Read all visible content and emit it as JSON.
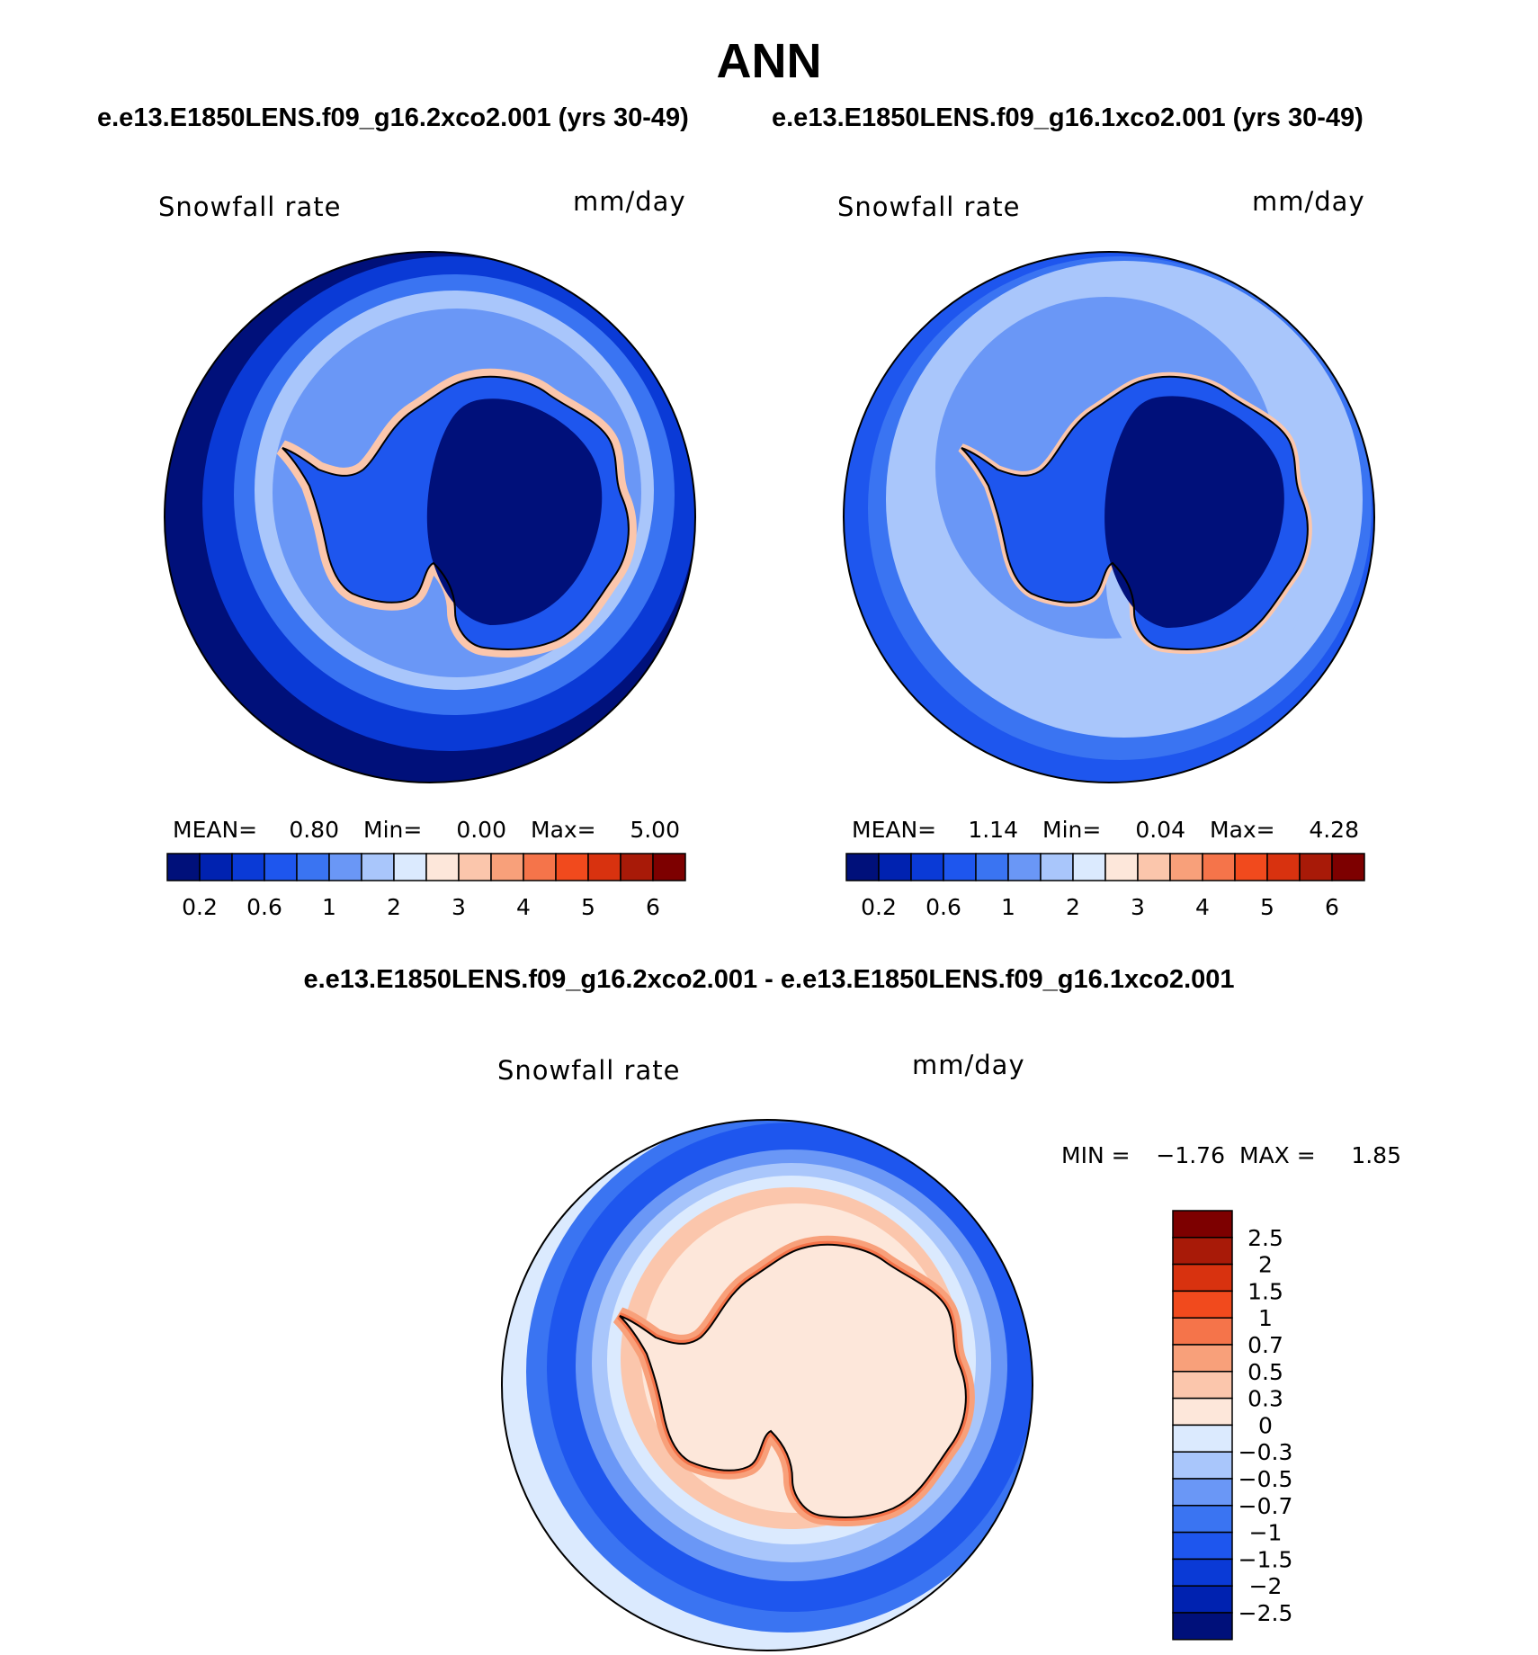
{
  "chart_data": {
    "type": "heatmap",
    "title": "ANN",
    "subtitle_left": "e.e13.E1850LENS.f09_g16.2xco2.001 (yrs 30-49)",
    "subtitle_right": "e.e13.E1850LENS.f09_g16.1xco2.001 (yrs 30-49)",
    "diff_title": "e.e13.E1850LENS.f09_g16.2xco2.001 - e.e13.E1850LENS.f09_g16.1xco2.001",
    "panels": [
      {
        "id": "left",
        "variable": "Snowfall rate",
        "units": "mm/day",
        "stats": {
          "mean_label": "MEAN=",
          "mean": "0.80",
          "min_label": "Min=",
          "min": "0.00",
          "max_label": "Max=",
          "max": "5.00"
        }
      },
      {
        "id": "right",
        "variable": "Snowfall rate",
        "units": "mm/day",
        "stats": {
          "mean_label": "MEAN=",
          "mean": "1.14",
          "min_label": "Min=",
          "min": "0.04",
          "max_label": "Max=",
          "max": "4.28"
        }
      },
      {
        "id": "diff",
        "variable": "Snowfall rate",
        "units": "mm/day",
        "stats": {
          "min_label": "MIN =",
          "min": "−1.76",
          "max_label": "MAX =",
          "max": "1.85"
        }
      }
    ],
    "colorbar_abs": {
      "colors": [
        "#00107a",
        "#0022b0",
        "#0a3ad6",
        "#1e56ee",
        "#3a74f2",
        "#6a97f6",
        "#a9c6fb",
        "#dbeafe",
        "#fde7da",
        "#fbc6ac",
        "#f8a07a",
        "#f5744a",
        "#f14a1d",
        "#d8320f",
        "#a81a08",
        "#7d0000"
      ],
      "tick_labels": [
        "0.2",
        "0.6",
        "1",
        "2",
        "3",
        "4",
        "5",
        "6"
      ]
    },
    "colorbar_diff": {
      "colors": [
        "#00107a",
        "#0022b0",
        "#0a3ad6",
        "#1e56ee",
        "#3a74f2",
        "#6a97f6",
        "#a9c6fb",
        "#dbeafe",
        "#fde7da",
        "#fbc6ac",
        "#f8a07a",
        "#f5744a",
        "#f14a1d",
        "#d8320f",
        "#a81a08",
        "#7d0000"
      ],
      "tick_labels": [
        "2.5",
        "2",
        "1.5",
        "1",
        "0.7",
        "0.5",
        "0.3",
        "0",
        "−0.3",
        "−0.5",
        "−0.7",
        "−1",
        "−1.5",
        "−2",
        "−2.5"
      ]
    }
  }
}
